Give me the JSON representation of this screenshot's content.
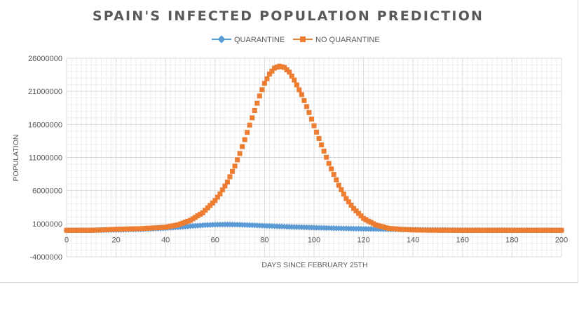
{
  "chart_data": {
    "type": "scatter",
    "title": "SPAIN'S INFECTED POPULATION PREDICTION",
    "xlabel": "DAYS SINCE FEBRUARY 25TH",
    "ylabel": "POPULATION",
    "xlim": [
      0,
      200
    ],
    "ylim": [
      -4000000,
      26000000
    ],
    "x_ticks": [
      "0",
      "20",
      "40",
      "60",
      "80",
      "100",
      "120",
      "140",
      "160",
      "180",
      "200"
    ],
    "y_ticks": [
      "26000000",
      "21000000",
      "16000000",
      "11000000",
      "6000000",
      "1000000",
      "-4000000"
    ],
    "grid": true,
    "legend_position": "top",
    "series": [
      {
        "name": "QUARANTINE",
        "color": "#5b9bd5",
        "marker": "diamond",
        "x": [
          0,
          10,
          20,
          30,
          35,
          40,
          45,
          50,
          55,
          60,
          65,
          70,
          75,
          80,
          85,
          90,
          100,
          110,
          120,
          130,
          140,
          150,
          160,
          180,
          200
        ],
        "y": [
          0,
          0,
          60000,
          150000,
          230000,
          330000,
          460000,
          620000,
          760000,
          850000,
          880000,
          840000,
          770000,
          680000,
          600000,
          520000,
          400000,
          300000,
          220000,
          150000,
          100000,
          60000,
          30000,
          10000,
          0
        ]
      },
      {
        "name": "NO QUARANTINE",
        "color": "#ed7d31",
        "marker": "square",
        "peak_day": 86,
        "peak_value": 24800000,
        "x": [
          0,
          10,
          20,
          30,
          40,
          45,
          50,
          55,
          60,
          62,
          65,
          68,
          70,
          72,
          75,
          78,
          80,
          82,
          84,
          86,
          88,
          90,
          92,
          95,
          98,
          100,
          103,
          106,
          110,
          113,
          116,
          120,
          125,
          130,
          135,
          140,
          145,
          150,
          160,
          170,
          180,
          190,
          200
        ],
        "y": [
          0,
          0,
          150000,
          250000,
          460000,
          820000,
          1500000,
          2650000,
          4500000,
          5500000,
          7300000,
          9700000,
          11600000,
          13700000,
          17000000,
          20300000,
          22200000,
          23600000,
          24500000,
          24800000,
          24600000,
          23900000,
          22700000,
          20500000,
          17800000,
          15800000,
          12900000,
          10100000,
          6800000,
          4800000,
          3300000,
          1800000,
          800000,
          300000,
          150000,
          60000,
          20000,
          10000,
          0,
          0,
          0,
          0,
          0
        ]
      }
    ]
  }
}
